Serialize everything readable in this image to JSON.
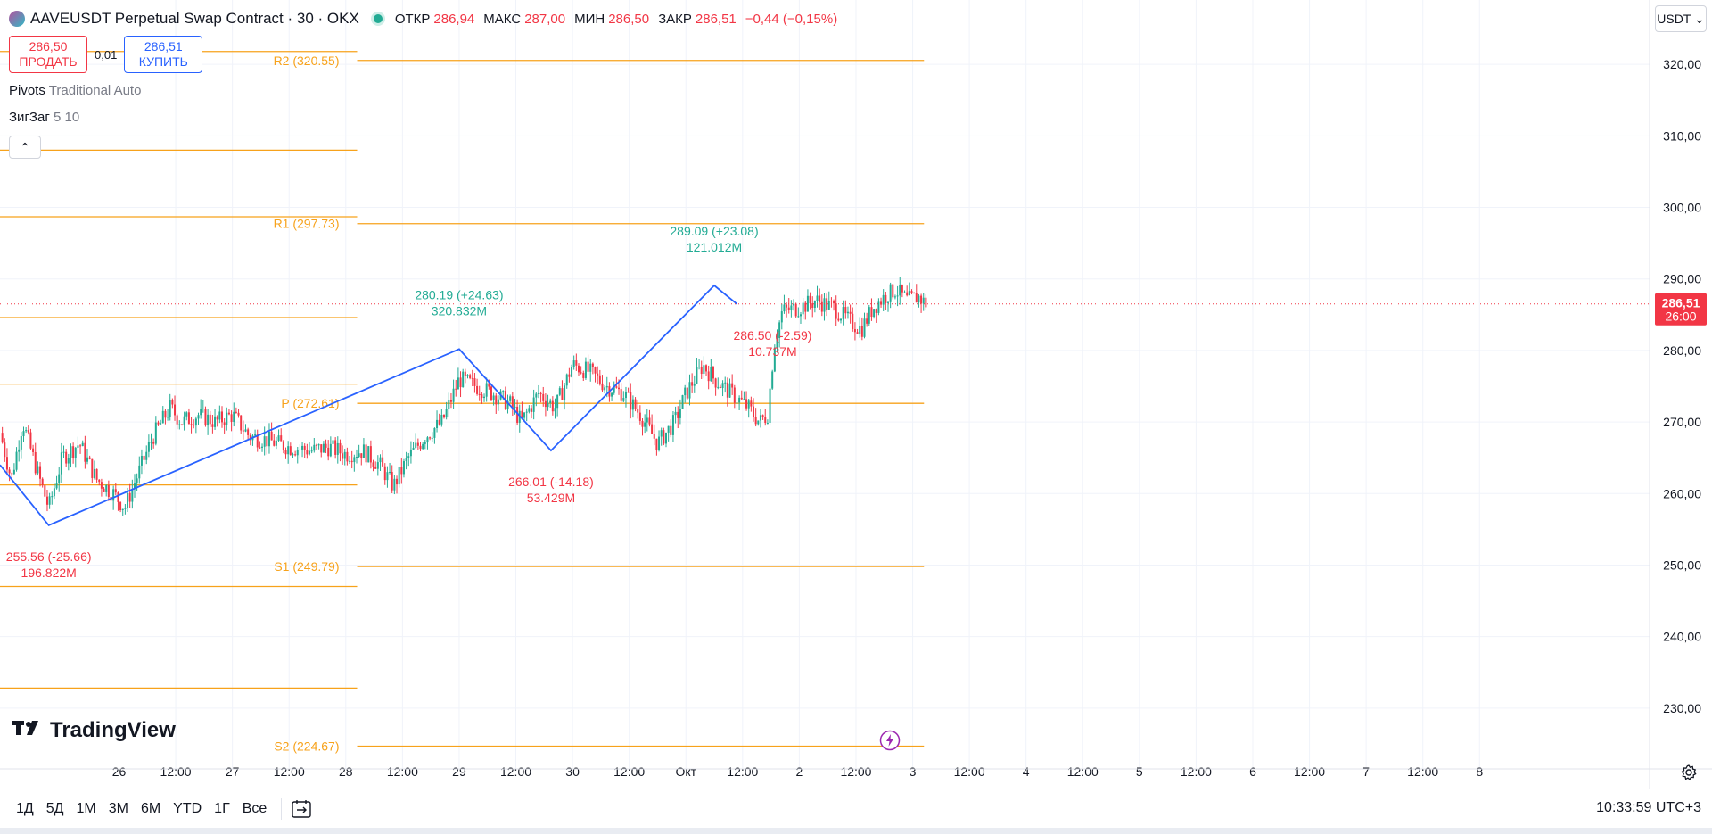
{
  "header": {
    "symbol_title": "AAVEUSDT Perpetual Swap Contract · 30 · OKX",
    "ohlc": [
      {
        "key": "ОТКР",
        "value": "286,94"
      },
      {
        "key": "МАКС",
        "value": "287,00"
      },
      {
        "key": "МИН",
        "value": "286,50"
      },
      {
        "key": "ЗАКР",
        "value": "286,51"
      }
    ],
    "change": "−0,44 (−0,15%)"
  },
  "trade": {
    "sell_price": "286,50",
    "sell_label": "ПРОДАТЬ",
    "spread": "0,01",
    "buy_price": "286,51",
    "buy_label": "КУПИТЬ"
  },
  "indicators": {
    "pivots_name": "Pivots",
    "pivots_params": "Traditional Auto",
    "zigzag_name": "ЗигЗаг",
    "zigzag_params": "5 10",
    "collapse_glyph": "⌃"
  },
  "currency": "USDT ⌄",
  "watermark": "TradingView",
  "bottom_bar": {
    "ranges": [
      "1Д",
      "5Д",
      "1М",
      "3М",
      "6М",
      "YTD",
      "1Г",
      "Все"
    ],
    "clock": "10:33:59 UTC+3"
  },
  "colors": {
    "up": "#22ab94",
    "down": "#f23645",
    "pivot": "#f7a21b",
    "zigzag": "#2962ff",
    "grid": "#f0f3fa",
    "axis_text": "#131722"
  },
  "chart_data": {
    "type": "candlestick",
    "price_axis": {
      "ticks": [
        230,
        240,
        250,
        260,
        270,
        280,
        290,
        300,
        310,
        320
      ],
      "tick_labels": [
        "230,00",
        "240,00",
        "250,00",
        "260,00",
        "270,00",
        "280,00",
        "290,00",
        "300,00",
        "310,00",
        "320,00"
      ],
      "range": [
        221.5,
        329
      ],
      "last_price": "286,51",
      "countdown": "26:00"
    },
    "time_axis": {
      "labels": [
        "26",
        "12:00",
        "27",
        "12:00",
        "28",
        "12:00",
        "29",
        "12:00",
        "30",
        "12:00",
        "Окт",
        "12:00",
        "2",
        "12:00",
        "3",
        "12:00",
        "4",
        "12:00",
        "5",
        "12:00",
        "6",
        "12:00",
        "7",
        "12:00",
        "8"
      ],
      "range_days": [
        -1.05,
        13.5
      ]
    },
    "pivot_levels": [
      {
        "label": "R2 (320.55)",
        "value": 320.55,
        "period": "current"
      },
      {
        "label": "R1 (297.73)",
        "value": 297.73,
        "period": "current"
      },
      {
        "label": "P (272.61)",
        "value": 272.61,
        "period": "current"
      },
      {
        "label": "S1 (249.79)",
        "value": 249.79,
        "period": "current"
      },
      {
        "label": "S2 (224.67)",
        "value": 224.67,
        "period": "current"
      },
      {
        "label": "",
        "value": 321.8,
        "period": "previous"
      },
      {
        "label": "",
        "value": 308.0,
        "period": "previous"
      },
      {
        "label": "",
        "value": 298.7,
        "period": "previous"
      },
      {
        "label": "",
        "value": 284.6,
        "period": "previous"
      },
      {
        "label": "",
        "value": 275.3,
        "period": "previous"
      },
      {
        "label": "",
        "value": 261.2,
        "period": "previous"
      },
      {
        "label": "",
        "value": 247.0,
        "period": "previous"
      },
      {
        "label": "",
        "value": 232.8,
        "period": "previous"
      }
    ],
    "zigzag": [
      {
        "t": -1.05,
        "price": 264.0
      },
      {
        "t": -0.62,
        "price": 255.56
      },
      {
        "t": 3.0,
        "price": 280.19
      },
      {
        "t": 3.81,
        "price": 266.01
      },
      {
        "t": 5.25,
        "price": 289.09
      },
      {
        "t": 5.45,
        "price": 286.5
      }
    ],
    "pivot_annotations": [
      {
        "t": -0.62,
        "price": 255.56,
        "line1": "255.56 (-25.66)",
        "line2": "196.822M",
        "kind": "low"
      },
      {
        "t": 3.0,
        "price": 280.19,
        "line1": "280.19 (+24.63)",
        "line2": "320.832M",
        "kind": "high"
      },
      {
        "t": 3.81,
        "price": 266.01,
        "line1": "266.01 (-14.18)",
        "line2": "53.429M",
        "kind": "low"
      },
      {
        "t": 5.25,
        "price": 289.09,
        "line1": "289.09 (+23.08)",
        "line2": "121.012M",
        "kind": "high"
      },
      {
        "t": 5.45,
        "price": 286.5,
        "line1": "286.50 (-2.59)",
        "line2": "10.737M",
        "kind": "low"
      }
    ],
    "price_path": [
      [
        -1.05,
        268.5
      ],
      [
        -0.95,
        262
      ],
      [
        -0.85,
        270
      ],
      [
        -0.72,
        263
      ],
      [
        -0.62,
        258
      ],
      [
        -0.5,
        265
      ],
      [
        -0.35,
        267
      ],
      [
        -0.2,
        262
      ],
      [
        -0.05,
        260
      ],
      [
        0.05,
        258
      ],
      [
        0.15,
        262
      ],
      [
        0.3,
        268
      ],
      [
        0.45,
        272
      ],
      [
        0.55,
        270
      ],
      [
        0.7,
        271
      ],
      [
        0.85,
        270
      ],
      [
        1.0,
        271
      ],
      [
        1.15,
        268
      ],
      [
        1.3,
        267.5
      ],
      [
        1.5,
        266.5
      ],
      [
        1.7,
        266
      ],
      [
        1.85,
        266.5
      ],
      [
        2.0,
        265.5
      ],
      [
        2.15,
        266
      ],
      [
        2.3,
        264
      ],
      [
        2.42,
        261
      ],
      [
        2.55,
        265
      ],
      [
        2.7,
        268
      ],
      [
        2.85,
        270
      ],
      [
        3.0,
        276
      ],
      [
        3.15,
        275
      ],
      [
        3.3,
        274
      ],
      [
        3.45,
        272.5
      ],
      [
        3.55,
        270
      ],
      [
        3.7,
        274
      ],
      [
        3.85,
        272
      ],
      [
        4.0,
        278
      ],
      [
        4.15,
        277
      ],
      [
        4.3,
        275
      ],
      [
        4.45,
        274
      ],
      [
        4.6,
        271
      ],
      [
        4.75,
        267
      ],
      [
        4.9,
        270
      ],
      [
        5.0,
        274
      ],
      [
        5.15,
        278
      ],
      [
        5.25,
        276
      ],
      [
        5.4,
        274
      ],
      [
        5.55,
        272
      ],
      [
        5.65,
        270
      ],
      [
        5.72,
        271
      ],
      [
        5.78,
        281
      ],
      [
        5.85,
        285.5
      ],
      [
        6.0,
        286
      ],
      [
        6.15,
        287
      ],
      [
        6.3,
        286
      ],
      [
        6.45,
        284
      ],
      [
        6.55,
        283
      ],
      [
        6.65,
        286
      ],
      [
        6.75,
        287.5
      ],
      [
        6.85,
        288.5
      ],
      [
        6.95,
        287
      ],
      [
        7.05,
        287.5
      ],
      [
        7.12,
        286.5
      ]
    ]
  }
}
